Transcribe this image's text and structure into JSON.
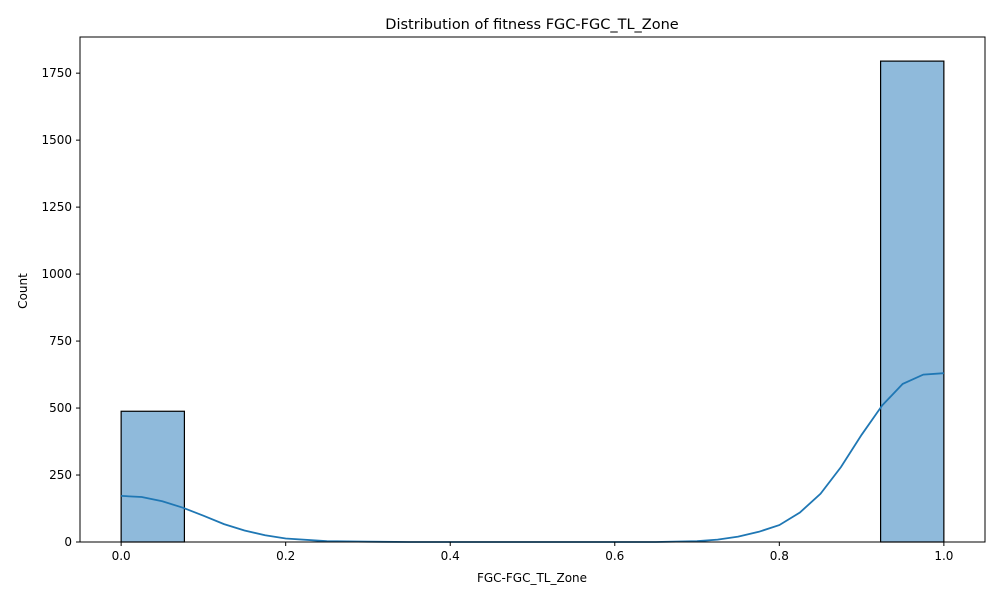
{
  "chart_data": {
    "type": "bar",
    "title": "Distribution of fitness FGC-FGC_TL_Zone",
    "xlabel": "FGC-FGC_TL_Zone",
    "ylabel": "Count",
    "xlim": [
      -0.05,
      1.05
    ],
    "ylim": [
      0,
      1885
    ],
    "xticks": [
      {
        "value": 0.0,
        "label": "0.0"
      },
      {
        "value": 0.2,
        "label": "0.2"
      },
      {
        "value": 0.4,
        "label": "0.4"
      },
      {
        "value": 0.6,
        "label": "0.6"
      },
      {
        "value": 0.8,
        "label": "0.8"
      },
      {
        "value": 1.0,
        "label": "1.0"
      }
    ],
    "yticks": [
      {
        "value": 0,
        "label": "0"
      },
      {
        "value": 250,
        "label": "250"
      },
      {
        "value": 500,
        "label": "500"
      },
      {
        "value": 750,
        "label": "750"
      },
      {
        "value": 1000,
        "label": "1000"
      },
      {
        "value": 1250,
        "label": "1250"
      },
      {
        "value": 1500,
        "label": "1500"
      },
      {
        "value": 1750,
        "label": "1750"
      }
    ],
    "bars": [
      {
        "x0": 0.0,
        "x1": 0.0769,
        "value": 488
      },
      {
        "x0": 0.9231,
        "x1": 1.0,
        "value": 1795
      }
    ],
    "kde": {
      "x": [
        0.0,
        0.025,
        0.05,
        0.075,
        0.1,
        0.125,
        0.15,
        0.175,
        0.2,
        0.25,
        0.3,
        0.35,
        0.4,
        0.5,
        0.6,
        0.65,
        0.7,
        0.725,
        0.75,
        0.775,
        0.8,
        0.825,
        0.85,
        0.875,
        0.9,
        0.925,
        0.95,
        0.975,
        1.0
      ],
      "y": [
        172,
        168,
        152,
        128,
        98,
        67,
        43,
        25,
        13,
        3,
        1,
        0,
        0,
        0,
        0,
        0,
        3,
        9,
        20,
        38,
        63,
        110,
        180,
        280,
        400,
        510,
        590,
        625,
        630
      ]
    },
    "grid": false,
    "legend": "none",
    "colors": {
      "bar_fill": "#8fbadb",
      "bar_edge": "#000000",
      "kde_line": "#1f77b4"
    }
  }
}
